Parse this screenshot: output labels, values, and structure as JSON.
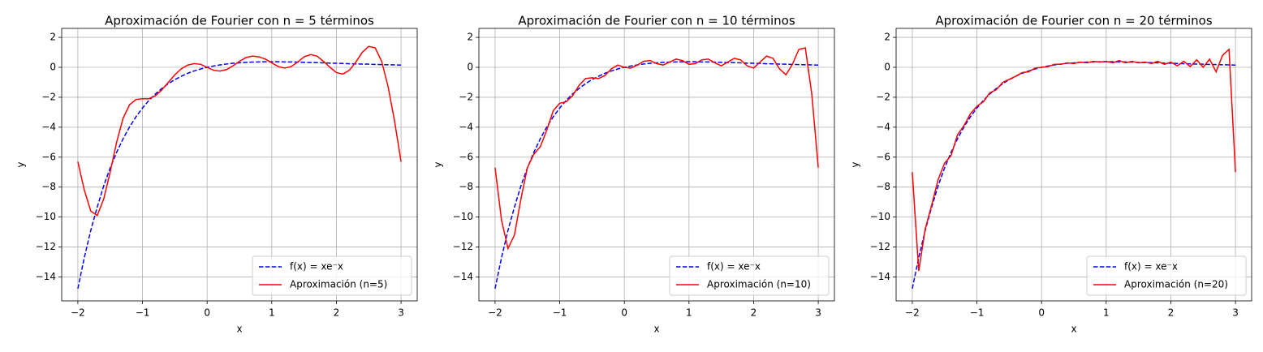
{
  "chart_data": [
    {
      "type": "line",
      "title": "Aproximación de Fourier con n = 5 términos",
      "xlabel": "x",
      "ylabel": "y",
      "x": [
        -2,
        -1.9,
        -1.8,
        -1.7,
        -1.6,
        -1.5,
        -1.4,
        -1.3,
        -1.2,
        -1.1,
        -1,
        -0.9,
        -0.8,
        -0.7,
        -0.6,
        -0.5,
        -0.4,
        -0.3,
        -0.2,
        -0.1,
        0,
        0.1,
        0.2,
        0.3,
        0.4,
        0.5,
        0.6,
        0.7,
        0.8,
        0.9,
        1,
        1.1,
        1.2,
        1.3,
        1.4,
        1.5,
        1.6,
        1.7,
        1.8,
        1.9,
        2,
        2.1,
        2.2,
        2.3,
        2.4,
        2.5,
        2.6,
        2.7,
        2.8,
        2.9,
        3
      ],
      "series": [
        {
          "name": "f(x) = xe⁻x",
          "color": "#0000ff",
          "dashed": true,
          "values": [
            -14.78,
            -12.71,
            -10.89,
            -9.33,
            -7.92,
            -6.72,
            -5.68,
            -4.77,
            -3.98,
            -3.3,
            -2.72,
            -2.21,
            -1.78,
            -1.41,
            -1.09,
            -0.82,
            -0.6,
            -0.4,
            -0.24,
            -0.11,
            0,
            0.09,
            0.16,
            0.22,
            0.27,
            0.3,
            0.33,
            0.35,
            0.36,
            0.37,
            0.37,
            0.37,
            0.36,
            0.36,
            0.35,
            0.33,
            0.32,
            0.31,
            0.3,
            0.28,
            0.27,
            0.26,
            0.24,
            0.23,
            0.22,
            0.21,
            0.19,
            0.18,
            0.17,
            0.16,
            0.15
          ]
        },
        {
          "name": "Aproximación (n=5)",
          "color": "#ff0000",
          "dashed": false,
          "values": [
            -6.3,
            -8.2,
            -9.6,
            -9.9,
            -8.8,
            -7.0,
            -5.0,
            -3.4,
            -2.5,
            -2.15,
            -2.1,
            -2.1,
            -1.9,
            -1.5,
            -1.0,
            -0.5,
            -0.1,
            0.15,
            0.25,
            0.2,
            0.0,
            -0.2,
            -0.25,
            -0.15,
            0.1,
            0.4,
            0.65,
            0.75,
            0.7,
            0.55,
            0.3,
            0.05,
            -0.05,
            0.05,
            0.35,
            0.7,
            0.85,
            0.75,
            0.4,
            0.0,
            -0.35,
            -0.45,
            -0.2,
            0.35,
            1.0,
            1.4,
            1.3,
            0.4,
            -1.3,
            -3.6,
            -6.3
          ]
        }
      ],
      "xlim": [
        -2.25,
        3.25
      ],
      "ylim": [
        -15.6,
        2.6
      ],
      "xticks": [
        {
          "value": -2,
          "label": "−2"
        },
        {
          "value": -1,
          "label": "−1"
        },
        0,
        1,
        2,
        3
      ],
      "yticks": [
        {
          "value": -14,
          "label": "−14"
        },
        {
          "value": -12,
          "label": "−12"
        },
        {
          "value": -10,
          "label": "−10"
        },
        {
          "value": -8,
          "label": "−8"
        },
        {
          "value": -6,
          "label": "−6"
        },
        {
          "value": -4,
          "label": "−4"
        },
        {
          "value": -2,
          "label": "−2"
        },
        0,
        2
      ],
      "grid": true,
      "legend": "lower right"
    },
    {
      "type": "line",
      "title": "Aproximación de Fourier con n = 10 términos",
      "xlabel": "x",
      "ylabel": "y",
      "x": [
        -2,
        -1.9,
        -1.8,
        -1.7,
        -1.6,
        -1.5,
        -1.4,
        -1.3,
        -1.2,
        -1.1,
        -1,
        -0.9,
        -0.8,
        -0.7,
        -0.6,
        -0.5,
        -0.4,
        -0.3,
        -0.2,
        -0.1,
        0,
        0.1,
        0.2,
        0.3,
        0.4,
        0.5,
        0.6,
        0.7,
        0.8,
        0.9,
        1,
        1.1,
        1.2,
        1.3,
        1.4,
        1.5,
        1.6,
        1.7,
        1.8,
        1.9,
        2,
        2.1,
        2.2,
        2.3,
        2.4,
        2.5,
        2.6,
        2.7,
        2.8,
        2.9,
        3
      ],
      "series": [
        {
          "name": "f(x) = xe⁻x",
          "color": "#0000ff",
          "dashed": true,
          "values": [
            -14.78,
            -12.71,
            -10.89,
            -9.33,
            -7.92,
            -6.72,
            -5.68,
            -4.77,
            -3.98,
            -3.3,
            -2.72,
            -2.21,
            -1.78,
            -1.41,
            -1.09,
            -0.82,
            -0.6,
            -0.4,
            -0.24,
            -0.11,
            0,
            0.09,
            0.16,
            0.22,
            0.27,
            0.3,
            0.33,
            0.35,
            0.36,
            0.37,
            0.37,
            0.37,
            0.36,
            0.36,
            0.35,
            0.33,
            0.32,
            0.31,
            0.3,
            0.28,
            0.27,
            0.26,
            0.24,
            0.23,
            0.22,
            0.21,
            0.19,
            0.18,
            0.17,
            0.16,
            0.15
          ]
        },
        {
          "name": "Aproximación (n=10)",
          "color": "#ff0000",
          "dashed": false,
          "values": [
            -6.7,
            -10.2,
            -12.1,
            -11.2,
            -8.8,
            -6.7,
            -5.8,
            -5.3,
            -4.2,
            -2.9,
            -2.4,
            -2.3,
            -1.9,
            -1.2,
            -0.75,
            -0.7,
            -0.75,
            -0.55,
            -0.1,
            0.15,
            0.0,
            -0.05,
            0.15,
            0.4,
            0.45,
            0.25,
            0.15,
            0.35,
            0.55,
            0.45,
            0.2,
            0.25,
            0.5,
            0.55,
            0.3,
            0.1,
            0.35,
            0.6,
            0.5,
            0.1,
            -0.05,
            0.35,
            0.75,
            0.6,
            -0.1,
            -0.5,
            0.2,
            1.2,
            1.3,
            -1.8,
            -6.7
          ]
        }
      ],
      "xlim": [
        -2.25,
        3.25
      ],
      "ylim": [
        -15.6,
        2.6
      ],
      "xticks": [
        {
          "value": -2,
          "label": "−2"
        },
        {
          "value": -1,
          "label": "−1"
        },
        0,
        1,
        2,
        3
      ],
      "yticks": [
        {
          "value": -14,
          "label": "−14"
        },
        {
          "value": -12,
          "label": "−12"
        },
        {
          "value": -10,
          "label": "−10"
        },
        {
          "value": -8,
          "label": "−8"
        },
        {
          "value": -6,
          "label": "−6"
        },
        {
          "value": -4,
          "label": "−4"
        },
        {
          "value": -2,
          "label": "−2"
        },
        0,
        2
      ],
      "grid": true,
      "legend": "lower right"
    },
    {
      "type": "line",
      "title": "Aproximación de Fourier con n = 20 términos",
      "xlabel": "x",
      "ylabel": "y",
      "x": [
        -2,
        -1.9,
        -1.8,
        -1.7,
        -1.6,
        -1.5,
        -1.4,
        -1.3,
        -1.2,
        -1.1,
        -1,
        -0.9,
        -0.8,
        -0.7,
        -0.6,
        -0.5,
        -0.4,
        -0.3,
        -0.2,
        -0.1,
        0,
        0.1,
        0.2,
        0.3,
        0.4,
        0.5,
        0.6,
        0.7,
        0.8,
        0.9,
        1,
        1.1,
        1.2,
        1.3,
        1.4,
        1.5,
        1.6,
        1.7,
        1.8,
        1.9,
        2,
        2.1,
        2.2,
        2.3,
        2.4,
        2.5,
        2.6,
        2.7,
        2.8,
        2.9,
        3
      ],
      "series": [
        {
          "name": "f(x) = xe⁻x",
          "color": "#0000ff",
          "dashed": true,
          "values": [
            -14.78,
            -12.71,
            -10.89,
            -9.33,
            -7.92,
            -6.72,
            -5.68,
            -4.77,
            -3.98,
            -3.3,
            -2.72,
            -2.21,
            -1.78,
            -1.41,
            -1.09,
            -0.82,
            -0.6,
            -0.4,
            -0.24,
            -0.11,
            0,
            0.09,
            0.16,
            0.22,
            0.27,
            0.3,
            0.33,
            0.35,
            0.36,
            0.37,
            0.37,
            0.37,
            0.36,
            0.36,
            0.35,
            0.33,
            0.32,
            0.31,
            0.3,
            0.28,
            0.27,
            0.26,
            0.24,
            0.23,
            0.22,
            0.21,
            0.19,
            0.18,
            0.17,
            0.16,
            0.15
          ]
        },
        {
          "name": "Aproximación (n=20)",
          "color": "#ff0000",
          "dashed": false,
          "values": [
            -7.0,
            -13.6,
            -10.8,
            -9.2,
            -7.5,
            -6.4,
            -5.9,
            -4.5,
            -3.9,
            -3.1,
            -2.6,
            -2.3,
            -1.7,
            -1.5,
            -1.0,
            -0.8,
            -0.6,
            -0.35,
            -0.3,
            -0.05,
            0.0,
            0.05,
            0.2,
            0.2,
            0.3,
            0.25,
            0.35,
            0.3,
            0.4,
            0.35,
            0.4,
            0.3,
            0.45,
            0.3,
            0.4,
            0.3,
            0.35,
            0.25,
            0.4,
            0.2,
            0.35,
            0.1,
            0.4,
            0.05,
            0.5,
            0.0,
            0.55,
            -0.3,
            0.8,
            1.2,
            -7.0
          ]
        }
      ],
      "xlim": [
        -2.25,
        3.25
      ],
      "ylim": [
        -15.6,
        2.6
      ],
      "xticks": [
        {
          "value": -2,
          "label": "−2"
        },
        {
          "value": -1,
          "label": "−1"
        },
        0,
        1,
        2,
        3
      ],
      "yticks": [
        {
          "value": -14,
          "label": "−14"
        },
        {
          "value": -12,
          "label": "−12"
        },
        {
          "value": -10,
          "label": "−10"
        },
        {
          "value": -8,
          "label": "−8"
        },
        {
          "value": -6,
          "label": "−6"
        },
        {
          "value": -4,
          "label": "−4"
        },
        {
          "value": -2,
          "label": "−2"
        },
        0,
        2
      ],
      "grid": true,
      "legend": "lower right"
    }
  ]
}
